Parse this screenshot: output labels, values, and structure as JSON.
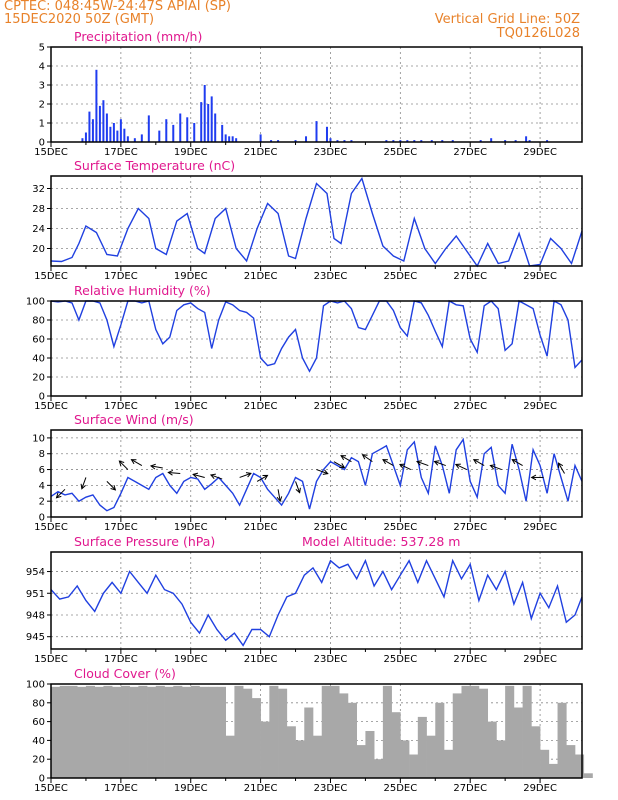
{
  "header": {
    "line1": "CPTEC:   048:45W-24:47S   APIAI (SP)",
    "line2": "15DEC2020 50Z (GMT)",
    "right1": "Vertical Grid Line: 50Z",
    "right2": "TQ0126L028"
  },
  "colors": {
    "series": "#2040e0",
    "bar": "#1f3cf0",
    "cloud": "#a8a8a8",
    "title": "#e0188e",
    "header": "#e8822a"
  },
  "chart_data": [
    {
      "type": "bar",
      "title": "Precipitation (mm/h)",
      "xlabels": [
        "15DEC",
        "17DEC",
        "19DEC",
        "21DEC",
        "23DEC",
        "25DEC",
        "27DEC",
        "29DEC"
      ],
      "ylim": [
        0,
        5
      ],
      "yticks": [
        0,
        1,
        2,
        3,
        4,
        5
      ],
      "grid": true,
      "x_day": [
        0.9,
        1.0,
        1.1,
        1.2,
        1.3,
        1.4,
        1.5,
        1.6,
        1.7,
        1.8,
        1.9,
        2.0,
        2.1,
        2.2,
        2.4,
        2.6,
        2.8,
        3.1,
        3.3,
        3.5,
        3.7,
        3.9,
        4.1,
        4.3,
        4.4,
        4.5,
        4.6,
        4.7,
        4.9,
        5.0,
        5.1,
        5.2,
        5.3,
        6.0,
        6.3,
        6.5,
        7.0,
        7.3,
        7.6,
        7.9,
        8.0,
        8.2,
        8.4,
        8.6,
        9.6,
        9.8,
        10.0,
        10.2,
        10.4,
        10.6,
        10.9,
        11.2,
        11.5,
        12.3,
        12.6,
        13.0,
        13.3,
        13.6,
        13.7,
        14.2
      ],
      "values": [
        0.2,
        0.5,
        1.6,
        1.2,
        3.8,
        1.9,
        2.2,
        1.5,
        0.8,
        1.0,
        0.6,
        1.2,
        0.7,
        0.3,
        0.2,
        0.4,
        1.4,
        0.6,
        1.2,
        0.9,
        1.5,
        1.3,
        1.0,
        2.1,
        3.0,
        2.0,
        2.4,
        1.5,
        0.9,
        0.4,
        0.3,
        0.3,
        0.2,
        0.4,
        0.1,
        0.1,
        0.1,
        0.3,
        1.1,
        0.8,
        0.2,
        0.1,
        0.1,
        0.1,
        0.1,
        0.1,
        0.1,
        0.1,
        0.1,
        0.1,
        0.1,
        0.1,
        0.1,
        0.1,
        0.2,
        0.1,
        0.1,
        0.3,
        0.1,
        0.1
      ]
    },
    {
      "type": "line",
      "title": "Surface Temperature (nC)",
      "xlabels": [
        "15DEC",
        "17DEC",
        "19DEC",
        "21DEC",
        "23DEC",
        "25DEC",
        "27DEC",
        "29DEC"
      ],
      "ylim": [
        16.5,
        34.5
      ],
      "yticks": [
        20,
        24,
        28,
        32
      ],
      "grid": true,
      "x_day": [
        0,
        0.3,
        0.6,
        0.8,
        1.0,
        1.3,
        1.6,
        1.9,
        2.2,
        2.5,
        2.8,
        3.0,
        3.3,
        3.6,
        3.9,
        4.2,
        4.4,
        4.7,
        5.0,
        5.3,
        5.6,
        5.9,
        6.2,
        6.5,
        6.8,
        7.0,
        7.3,
        7.6,
        7.9,
        8.1,
        8.3,
        8.6,
        8.9,
        9.2,
        9.5,
        9.8,
        10.1,
        10.4,
        10.7,
        11.0,
        11.3,
        11.6,
        11.9,
        12.2,
        12.5,
        12.8,
        13.1,
        13.4,
        13.7,
        14.0,
        14.3,
        14.6,
        14.9,
        15.2
      ],
      "values": [
        17.5,
        17.4,
        18.2,
        21.0,
        24.5,
        23.2,
        18.8,
        18.5,
        24.0,
        28.0,
        26.0,
        20.0,
        18.8,
        25.5,
        27.0,
        20.0,
        19.0,
        26.0,
        28.0,
        20.0,
        17.5,
        24.0,
        29.0,
        27.0,
        18.5,
        18.0,
        26.0,
        33.0,
        31.0,
        22.0,
        21.0,
        31.0,
        34.0,
        27.0,
        20.5,
        18.5,
        17.5,
        26.0,
        20.0,
        17.0,
        20.0,
        22.5,
        19.5,
        16.5,
        21.0,
        17.0,
        17.5,
        23.0,
        16.5,
        16.8,
        22.0,
        20.0,
        17.0,
        23.5
      ]
    },
    {
      "type": "line",
      "title": "Relative Humidity (%)",
      "xlabels": [
        "15DEC",
        "17DEC",
        "19DEC",
        "21DEC",
        "23DEC",
        "25DEC",
        "27DEC",
        "29DEC"
      ],
      "ylim": [
        0,
        100
      ],
      "yticks": [
        0,
        20,
        40,
        60,
        80,
        100
      ],
      "grid": true,
      "x_day": [
        0,
        0.2,
        0.4,
        0.6,
        0.8,
        1.0,
        1.2,
        1.4,
        1.6,
        1.8,
        2.0,
        2.2,
        2.4,
        2.6,
        2.8,
        3.0,
        3.2,
        3.4,
        3.6,
        3.8,
        4.0,
        4.2,
        4.4,
        4.6,
        4.8,
        5.0,
        5.2,
        5.4,
        5.6,
        5.8,
        6.0,
        6.2,
        6.4,
        6.6,
        6.8,
        7.0,
        7.2,
        7.4,
        7.6,
        7.8,
        8.0,
        8.2,
        8.4,
        8.6,
        8.8,
        9.0,
        9.2,
        9.4,
        9.6,
        9.8,
        10.0,
        10.2,
        10.4,
        10.6,
        10.8,
        11.0,
        11.2,
        11.4,
        11.6,
        11.8,
        12.0,
        12.2,
        12.4,
        12.6,
        12.8,
        13.0,
        13.2,
        13.4,
        13.6,
        13.8,
        14.0,
        14.2,
        14.4,
        14.6,
        14.8,
        15.0,
        15.2
      ],
      "values": [
        100,
        99,
        100,
        98,
        80,
        100,
        100,
        98,
        80,
        52,
        75,
        100,
        100,
        98,
        100,
        70,
        55,
        62,
        90,
        96,
        98,
        92,
        88,
        50,
        80,
        99,
        96,
        90,
        88,
        82,
        40,
        32,
        34,
        50,
        62,
        70,
        40,
        26,
        40,
        95,
        100,
        98,
        100,
        92,
        72,
        70,
        85,
        100,
        100,
        90,
        72,
        63,
        100,
        98,
        85,
        68,
        52,
        100,
        96,
        95,
        60,
        46,
        95,
        100,
        92,
        48,
        55,
        100,
        96,
        92,
        64,
        42,
        100,
        96,
        80,
        30,
        38
      ]
    },
    {
      "type": "line",
      "title": "Surface Wind (m/s)",
      "xlabels": [
        "15DEC",
        "17DEC",
        "19DEC",
        "21DEC",
        "23DEC",
        "25DEC",
        "27DEC",
        "29DEC"
      ],
      "ylim": [
        0,
        11
      ],
      "yticks": [
        0,
        2,
        4,
        6,
        8,
        10
      ],
      "grid": true,
      "x_day": [
        0,
        0.2,
        0.4,
        0.6,
        0.8,
        1.0,
        1.2,
        1.4,
        1.6,
        1.8,
        2.0,
        2.2,
        2.4,
        2.6,
        2.8,
        3.0,
        3.2,
        3.4,
        3.6,
        3.8,
        4.0,
        4.2,
        4.4,
        4.6,
        4.8,
        5.0,
        5.2,
        5.4,
        5.6,
        5.8,
        6.0,
        6.2,
        6.4,
        6.6,
        6.8,
        7.0,
        7.2,
        7.4,
        7.6,
        7.8,
        8.0,
        8.2,
        8.4,
        8.6,
        8.8,
        9.0,
        9.2,
        9.4,
        9.6,
        9.8,
        10.0,
        10.2,
        10.4,
        10.6,
        10.8,
        11.0,
        11.2,
        11.4,
        11.6,
        11.8,
        12.0,
        12.2,
        12.4,
        12.6,
        12.8,
        13.0,
        13.2,
        13.4,
        13.6,
        13.8,
        14.0,
        14.2,
        14.4,
        14.6,
        14.8,
        15.0,
        15.2
      ],
      "values": [
        2.6,
        3.2,
        2.8,
        3.0,
        2.0,
        2.5,
        2.8,
        1.5,
        0.8,
        1.2,
        3.0,
        5.0,
        4.5,
        4.0,
        3.5,
        5.0,
        5.5,
        4.0,
        3.0,
        4.5,
        5.0,
        4.8,
        3.5,
        4.2,
        5.0,
        4.0,
        3.0,
        1.5,
        3.5,
        5.5,
        5.0,
        3.5,
        2.5,
        1.5,
        3.0,
        5.0,
        4.5,
        1.0,
        4.5,
        6.0,
        7.0,
        6.5,
        6.0,
        7.5,
        7.0,
        4.0,
        8.0,
        8.5,
        9.0,
        6.5,
        4.0,
        8.5,
        9.5,
        5.0,
        3.0,
        9.0,
        6.5,
        3.0,
        8.5,
        9.8,
        4.5,
        2.5,
        8.0,
        8.8,
        4.0,
        3.0,
        9.2,
        6.0,
        2.0,
        8.5,
        6.5,
        3.0,
        8.0,
        5.0,
        2.0,
        6.5,
        4.5
      ],
      "arrows": {
        "x_day": [
          0.4,
          1.0,
          1.6,
          2.2,
          2.6,
          3.2,
          3.7,
          4.4,
          4.9,
          5.4,
          5.9,
          6.5,
          7.0,
          7.6,
          8.1,
          8.6,
          9.2,
          9.8,
          10.3,
          10.8,
          11.3,
          11.9,
          12.4,
          12.9,
          13.5,
          14.1,
          14.7
        ],
        "y": [
          3.5,
          5.0,
          4.5,
          6.0,
          6.5,
          6.2,
          5.5,
          5.0,
          4.8,
          5.0,
          4.5,
          3.5,
          4.5,
          6.0,
          7.0,
          7.0,
          7.0,
          6.5,
          6.0,
          6.5,
          6.5,
          6.0,
          6.5,
          6.0,
          6.5,
          5.0,
          5.5
        ],
        "dir_deg": [
          225,
          200,
          135,
          315,
          300,
          280,
          275,
          285,
          290,
          70,
          60,
          170,
          160,
          110,
          120,
          300,
          305,
          300,
          295,
          290,
          290,
          295,
          300,
          290,
          300,
          270,
          330
        ]
      }
    },
    {
      "type": "line",
      "title": "Surface Pressure (hPa)",
      "annotation": "Model Altitude: 537.28 m",
      "xlabels": [
        "15DEC",
        "17DEC",
        "19DEC",
        "21DEC",
        "23DEC",
        "25DEC",
        "27DEC",
        "29DEC"
      ],
      "ylim": [
        943.3,
        956.7
      ],
      "yticks": [
        945,
        948,
        951,
        954
      ],
      "grid": true,
      "x_day": [
        0,
        0.25,
        0.5,
        0.75,
        1.0,
        1.25,
        1.5,
        1.75,
        2.0,
        2.25,
        2.5,
        2.75,
        3.0,
        3.25,
        3.5,
        3.75,
        4.0,
        4.25,
        4.5,
        4.75,
        5.0,
        5.25,
        5.5,
        5.75,
        6.0,
        6.25,
        6.5,
        6.75,
        7.0,
        7.25,
        7.5,
        7.75,
        8.0,
        8.25,
        8.5,
        8.75,
        9.0,
        9.25,
        9.5,
        9.75,
        10.0,
        10.25,
        10.5,
        10.75,
        11.0,
        11.25,
        11.5,
        11.75,
        12.0,
        12.25,
        12.5,
        12.75,
        13.0,
        13.25,
        13.5,
        13.75,
        14.0,
        14.25,
        14.5,
        14.75,
        15.0,
        15.25
      ],
      "values": [
        951.5,
        950.2,
        950.5,
        952.0,
        950.0,
        948.5,
        951.0,
        952.5,
        951.0,
        954.0,
        952.5,
        951.0,
        953.5,
        951.5,
        951.0,
        949.5,
        947.0,
        945.5,
        948.0,
        946.0,
        944.5,
        945.5,
        943.8,
        946.0,
        946.0,
        945.0,
        948.0,
        950.5,
        951.0,
        953.5,
        954.5,
        952.5,
        955.5,
        954.5,
        955.0,
        953.0,
        955.5,
        952.0,
        954.0,
        951.5,
        953.5,
        955.5,
        952.5,
        955.5,
        953.0,
        950.5,
        955.5,
        953.0,
        955.0,
        950.0,
        953.5,
        951.5,
        954.0,
        949.5,
        952.5,
        947.5,
        951.0,
        949.0,
        952.0,
        947.0,
        948.0,
        950.5
      ]
    },
    {
      "type": "bar",
      "title": "Cloud Cover (%)",
      "xlabels": [
        "15DEC",
        "17DEC",
        "19DEC",
        "21DEC",
        "23DEC",
        "25DEC",
        "27DEC",
        "29DEC"
      ],
      "ylim": [
        0,
        100
      ],
      "yticks": [
        0,
        20,
        40,
        60,
        80,
        100
      ],
      "grid": true,
      "x_day": [
        0,
        0.25,
        0.5,
        0.75,
        1.0,
        1.25,
        1.5,
        1.75,
        2.0,
        2.25,
        2.5,
        2.75,
        3.0,
        3.25,
        3.5,
        3.75,
        4.0,
        4.25,
        4.5,
        4.75,
        5.0,
        5.25,
        5.5,
        5.75,
        6.0,
        6.25,
        6.5,
        6.75,
        7.0,
        7.25,
        7.5,
        7.75,
        8.0,
        8.25,
        8.5,
        8.75,
        9.0,
        9.25,
        9.5,
        9.75,
        10.0,
        10.25,
        10.5,
        10.75,
        11.0,
        11.25,
        11.5,
        11.75,
        12.0,
        12.25,
        12.5,
        12.75,
        13.0,
        13.25,
        13.5,
        13.75,
        14.0,
        14.25,
        14.5,
        14.75,
        15.0,
        15.25
      ],
      "values": [
        97,
        98,
        98,
        97,
        98,
        97,
        98,
        97,
        98,
        97,
        98,
        97,
        98,
        97,
        98,
        97,
        98,
        97,
        97,
        97,
        45,
        98,
        95,
        85,
        60,
        98,
        95,
        55,
        40,
        75,
        45,
        98,
        98,
        90,
        80,
        35,
        50,
        20,
        98,
        70,
        40,
        25,
        65,
        45,
        80,
        30,
        90,
        98,
        98,
        95,
        60,
        40,
        98,
        75,
        98,
        55,
        30,
        15,
        80,
        35,
        25,
        5
      ]
    }
  ]
}
